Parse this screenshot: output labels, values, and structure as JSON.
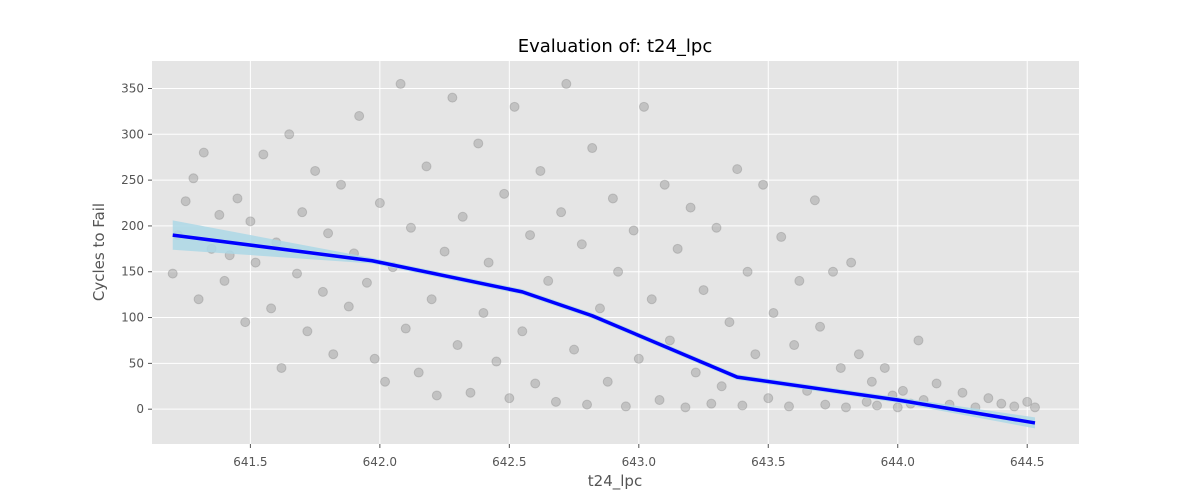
{
  "chart_data": {
    "type": "scatter",
    "title": "Evaluation of: t24_lpc",
    "xlabel": "t24_lpc",
    "ylabel": "Cycles to Fail",
    "xlim": [
      641.12,
      644.7
    ],
    "ylim": [
      -38,
      380
    ],
    "xticks": [
      641.5,
      642.0,
      642.5,
      643.0,
      643.5,
      644.0,
      644.5
    ],
    "yticks": [
      0,
      50,
      100,
      150,
      200,
      250,
      300,
      350
    ],
    "grid": true,
    "background_color": "#e5e5e5",
    "grid_color": "#ffffff",
    "series": [
      {
        "type": "scatter",
        "color": "#808080",
        "opacity": 0.35,
        "points": [
          [
            641.2,
            148
          ],
          [
            641.22,
            190
          ],
          [
            641.25,
            227
          ],
          [
            641.28,
            252
          ],
          [
            641.3,
            120
          ],
          [
            641.32,
            280
          ],
          [
            641.35,
            175
          ],
          [
            641.38,
            212
          ],
          [
            641.4,
            140
          ],
          [
            641.42,
            168
          ],
          [
            641.45,
            230
          ],
          [
            641.48,
            95
          ],
          [
            641.5,
            205
          ],
          [
            641.52,
            160
          ],
          [
            641.55,
            278
          ],
          [
            641.58,
            110
          ],
          [
            641.6,
            182
          ],
          [
            641.62,
            45
          ],
          [
            641.65,
            300
          ],
          [
            641.68,
            148
          ],
          [
            641.7,
            215
          ],
          [
            641.72,
            85
          ],
          [
            641.75,
            260
          ],
          [
            641.78,
            128
          ],
          [
            641.8,
            192
          ],
          [
            641.82,
            60
          ],
          [
            641.85,
            245
          ],
          [
            641.88,
            112
          ],
          [
            641.9,
            170
          ],
          [
            641.92,
            320
          ],
          [
            641.95,
            138
          ],
          [
            641.98,
            55
          ],
          [
            642.0,
            225
          ],
          [
            642.02,
            30
          ],
          [
            642.05,
            155
          ],
          [
            642.08,
            355
          ],
          [
            642.1,
            88
          ],
          [
            642.12,
            198
          ],
          [
            642.15,
            40
          ],
          [
            642.18,
            265
          ],
          [
            642.2,
            120
          ],
          [
            642.22,
            15
          ],
          [
            642.25,
            172
          ],
          [
            642.28,
            340
          ],
          [
            642.3,
            70
          ],
          [
            642.32,
            210
          ],
          [
            642.35,
            18
          ],
          [
            642.38,
            290
          ],
          [
            642.4,
            105
          ],
          [
            642.42,
            160
          ],
          [
            642.45,
            52
          ],
          [
            642.48,
            235
          ],
          [
            642.5,
            12
          ],
          [
            642.52,
            330
          ],
          [
            642.55,
            85
          ],
          [
            642.58,
            190
          ],
          [
            642.6,
            28
          ],
          [
            642.62,
            260
          ],
          [
            642.65,
            140
          ],
          [
            642.68,
            8
          ],
          [
            642.7,
            215
          ],
          [
            642.72,
            355
          ],
          [
            642.75,
            65
          ],
          [
            642.78,
            180
          ],
          [
            642.8,
            5
          ],
          [
            642.82,
            285
          ],
          [
            642.85,
            110
          ],
          [
            642.88,
            30
          ],
          [
            642.9,
            230
          ],
          [
            642.92,
            150
          ],
          [
            642.95,
            3
          ],
          [
            642.98,
            195
          ],
          [
            643.0,
            55
          ],
          [
            643.02,
            330
          ],
          [
            643.05,
            120
          ],
          [
            643.08,
            10
          ],
          [
            643.1,
            245
          ],
          [
            643.12,
            75
          ],
          [
            643.15,
            175
          ],
          [
            643.18,
            2
          ],
          [
            643.2,
            220
          ],
          [
            643.22,
            40
          ],
          [
            643.25,
            130
          ],
          [
            643.28,
            6
          ],
          [
            643.3,
            198
          ],
          [
            643.32,
            25
          ],
          [
            643.35,
            95
          ],
          [
            643.38,
            262
          ],
          [
            643.4,
            4
          ],
          [
            643.42,
            150
          ],
          [
            643.45,
            60
          ],
          [
            643.48,
            245
          ],
          [
            643.5,
            12
          ],
          [
            643.52,
            105
          ],
          [
            643.55,
            188
          ],
          [
            643.58,
            3
          ],
          [
            643.6,
            70
          ],
          [
            643.62,
            140
          ],
          [
            643.65,
            20
          ],
          [
            643.68,
            228
          ],
          [
            643.7,
            90
          ],
          [
            643.72,
            5
          ],
          [
            643.75,
            150
          ],
          [
            643.78,
            45
          ],
          [
            643.8,
            2
          ],
          [
            643.82,
            160
          ],
          [
            643.85,
            60
          ],
          [
            643.88,
            8
          ],
          [
            643.9,
            30
          ],
          [
            643.92,
            4
          ],
          [
            643.95,
            45
          ],
          [
            643.98,
            15
          ],
          [
            644.0,
            2
          ],
          [
            644.02,
            20
          ],
          [
            644.05,
            6
          ],
          [
            644.08,
            75
          ],
          [
            644.1,
            10
          ],
          [
            644.15,
            28
          ],
          [
            644.2,
            5
          ],
          [
            644.25,
            18
          ],
          [
            644.3,
            2
          ],
          [
            644.35,
            12
          ],
          [
            644.4,
            6
          ],
          [
            644.45,
            3
          ],
          [
            644.5,
            8
          ],
          [
            644.53,
            2
          ]
        ]
      },
      {
        "type": "line",
        "color": "#0000ff",
        "ci_color": "#add8e6",
        "points": [
          [
            641.2,
            190
          ],
          [
            641.97,
            162
          ],
          [
            642.55,
            128
          ],
          [
            642.82,
            102
          ],
          [
            643.38,
            35
          ],
          [
            644.0,
            10
          ],
          [
            644.53,
            -15
          ]
        ],
        "ci_upper": [
          [
            641.2,
            206
          ],
          [
            641.97,
            165
          ],
          [
            642.55,
            131
          ],
          [
            642.82,
            105
          ],
          [
            643.38,
            38
          ],
          [
            644.0,
            13
          ],
          [
            644.53,
            -9
          ]
        ],
        "ci_lower": [
          [
            641.2,
            174
          ],
          [
            641.97,
            159
          ],
          [
            642.55,
            125
          ],
          [
            642.82,
            99
          ],
          [
            643.38,
            32
          ],
          [
            644.0,
            7
          ],
          [
            644.53,
            -21
          ]
        ]
      }
    ]
  }
}
